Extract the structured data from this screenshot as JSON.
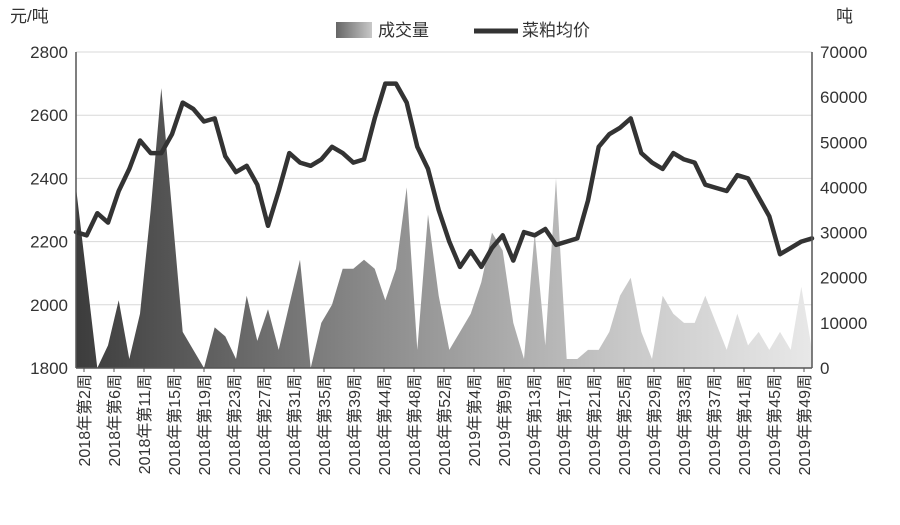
{
  "chart_data": {
    "type": "area+line",
    "y_left_unit": "元/吨",
    "y_right_unit": "吨",
    "ylim_left": [
      1800,
      2800
    ],
    "ylim_right": [
      0,
      70000
    ],
    "yticks_left": [
      "1800",
      "2000",
      "2200",
      "2400",
      "2600",
      "2800"
    ],
    "yticks_right": [
      "0",
      "10000",
      "20000",
      "30000",
      "40000",
      "50000",
      "60000",
      "70000"
    ],
    "xtick_labels": [
      "2018年第2周",
      "2018年第6周",
      "2018年第11周",
      "2018年第15周",
      "2018年第19周",
      "2018年第23周",
      "2018年第27周",
      "2018年第31周",
      "2018年第35周",
      "2018年第39周",
      "2018年第44周",
      "2018年第48周",
      "2018年第52周",
      "2019年第4周",
      "2019年第9周",
      "2019年第13周",
      "2019年第17周",
      "2019年第21周",
      "2019年第25周",
      "2019年第29周",
      "2019年第33周",
      "2019年第37周",
      "2019年第41周",
      "2019年第45周",
      "2019年第49周"
    ],
    "legend": [
      {
        "label": "成交量",
        "kind": "area",
        "color": "#8c8c8c"
      },
      {
        "label": "菜粕均价",
        "kind": "line",
        "color": "#333333"
      }
    ],
    "series": [
      {
        "name": "菜粕均价",
        "axis": "left",
        "values": [
          2230,
          2220,
          2290,
          2260,
          2360,
          2430,
          2520,
          2480,
          2480,
          2540,
          2640,
          2620,
          2580,
          2590,
          2470,
          2420,
          2440,
          2380,
          2250,
          2360,
          2480,
          2450,
          2440,
          2460,
          2500,
          2480,
          2450,
          2460,
          2590,
          2700,
          2700,
          2640,
          2500,
          2430,
          2300,
          2200,
          2120,
          2170,
          2120,
          2180,
          2220,
          2140,
          2230,
          2220,
          2240,
          2190,
          2200,
          2210,
          2330,
          2500,
          2540,
          2560,
          2590,
          2480,
          2450,
          2430,
          2480,
          2460,
          2450,
          2380,
          2370,
          2360,
          2410,
          2400,
          2340,
          2280,
          2160,
          2180,
          2200,
          2210
        ]
      },
      {
        "name": "成交量",
        "axis": "right",
        "values": [
          40000,
          20000,
          0,
          5000,
          15000,
          2000,
          12000,
          35000,
          62000,
          35000,
          8000,
          4000,
          0,
          9000,
          7000,
          2000,
          16000,
          6000,
          13000,
          4000,
          14000,
          24000,
          0,
          10000,
          14000,
          22000,
          22000,
          24000,
          22000,
          15000,
          22000,
          40000,
          4000,
          34000,
          16000,
          4000,
          8000,
          12000,
          19000,
          30000,
          26000,
          10000,
          2000,
          30000,
          5000,
          42000,
          2000,
          2000,
          4000,
          4000,
          8000,
          16000,
          20000,
          8000,
          2000,
          16000,
          12000,
          10000,
          10000,
          16000,
          10000,
          4000,
          12000,
          5000,
          8000,
          4000,
          8000,
          4000,
          18000,
          4000
        ]
      }
    ]
  }
}
